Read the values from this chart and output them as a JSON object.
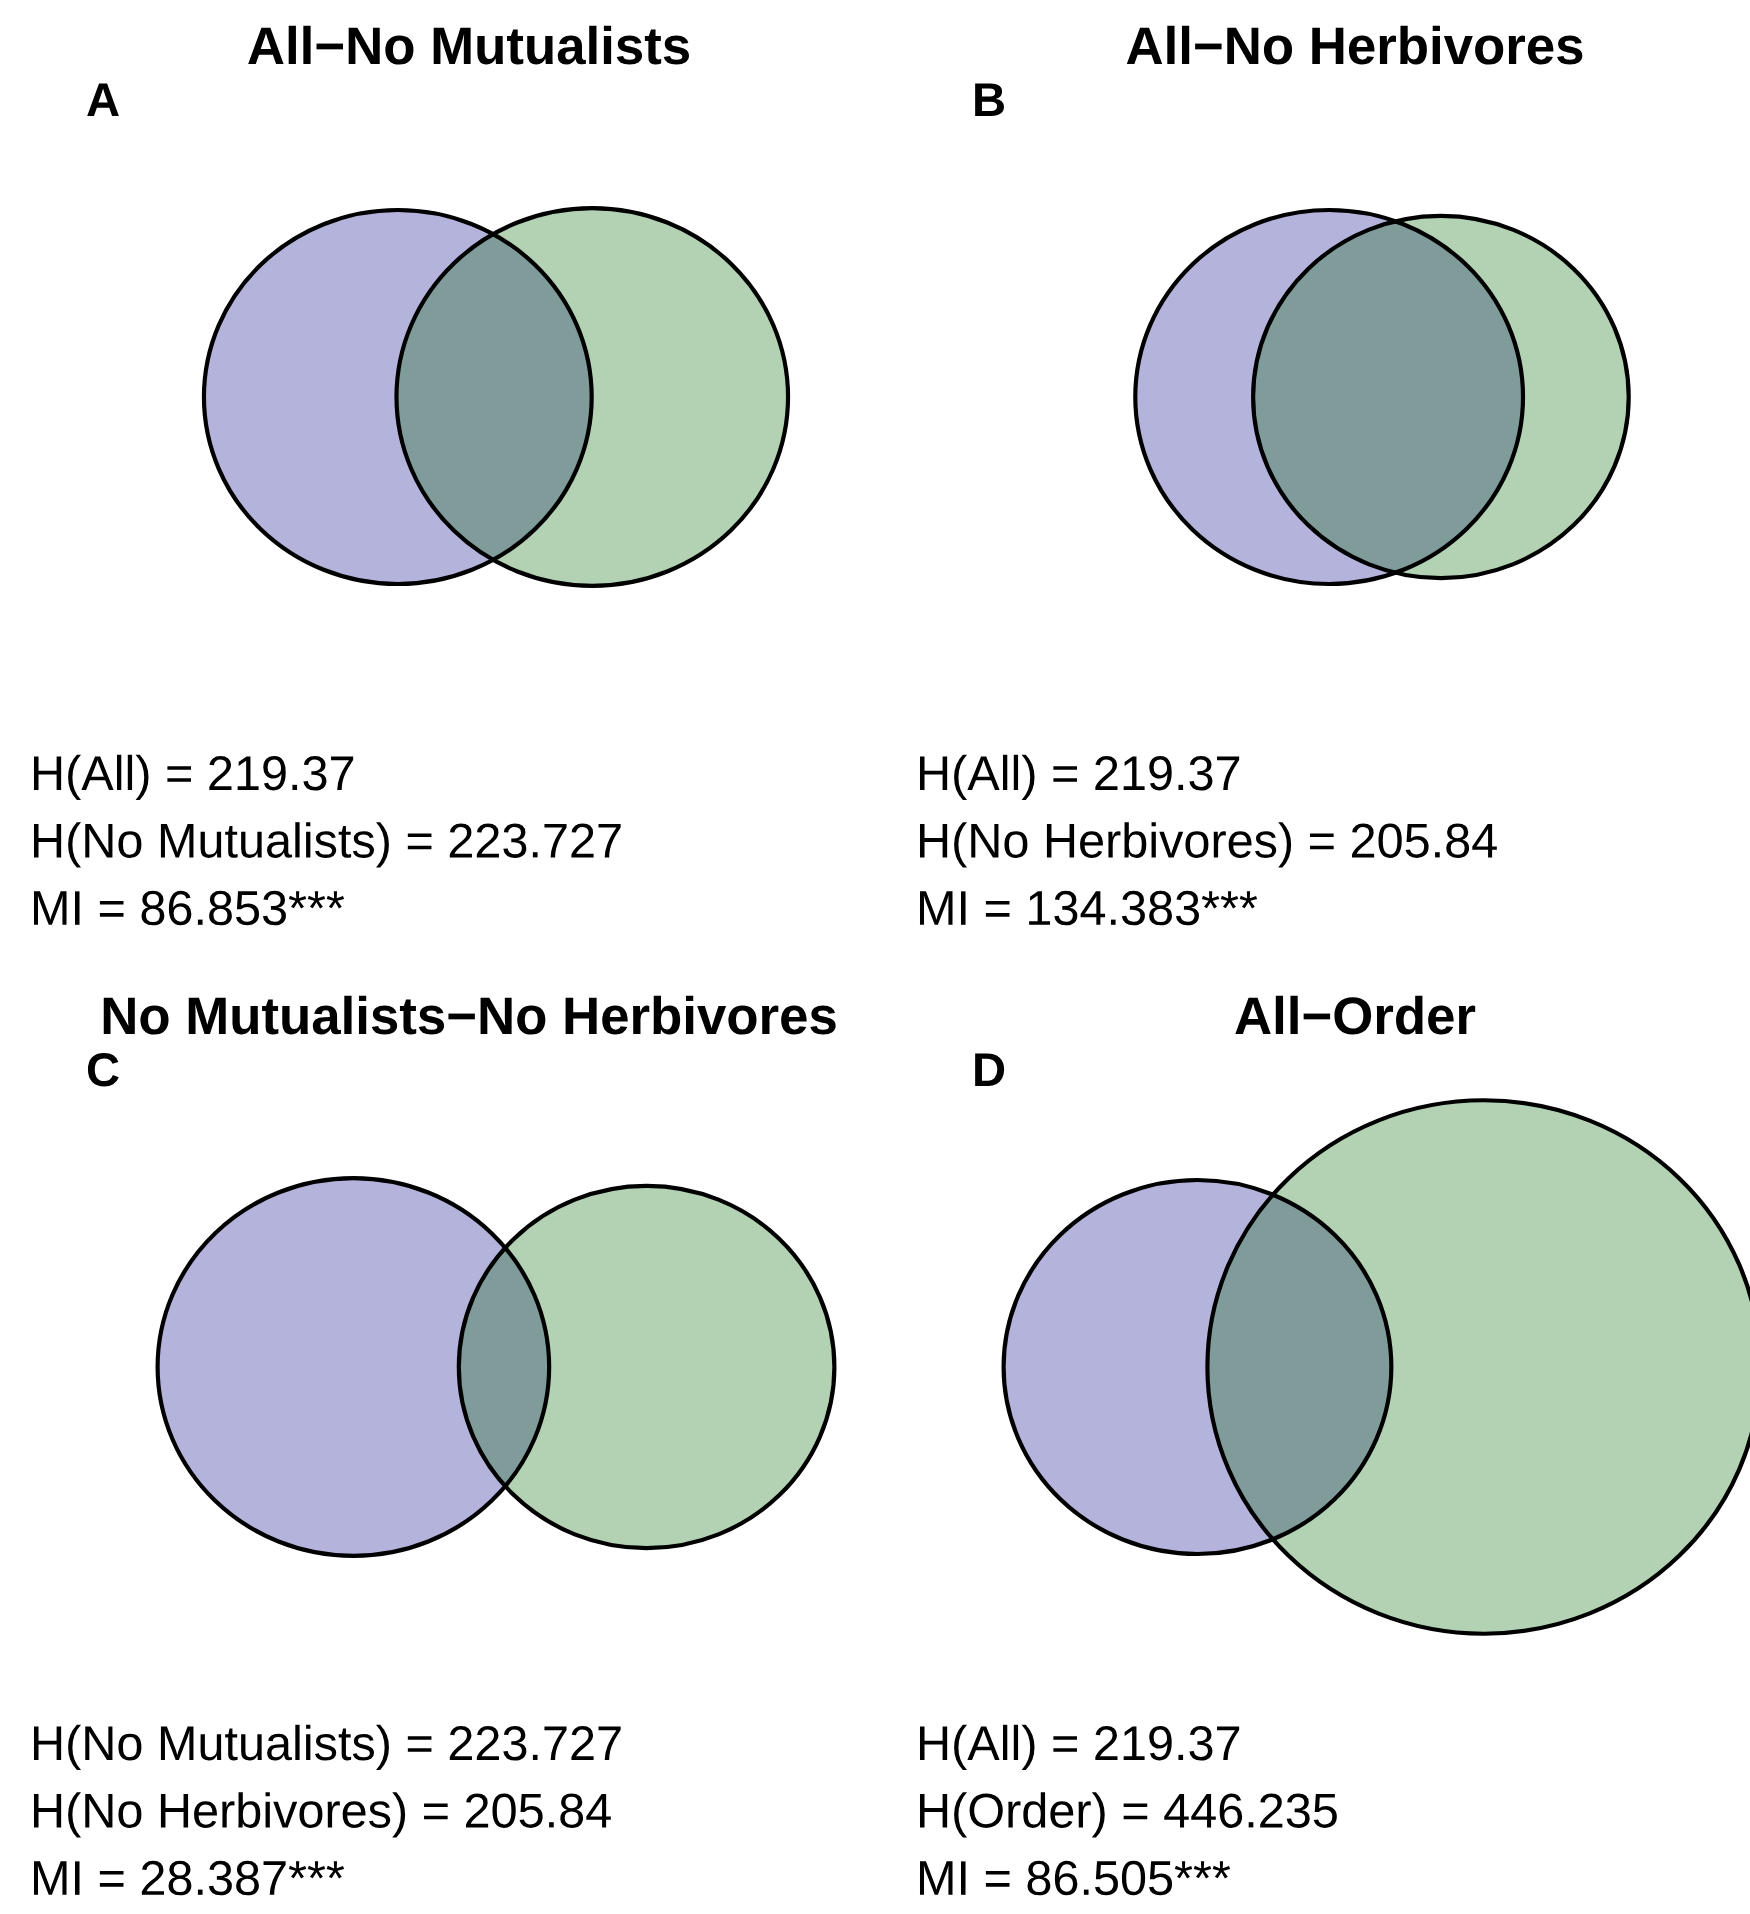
{
  "chart_data": [
    {
      "type": "other",
      "title": "All−No Mutualists",
      "subtitle": "A",
      "values": [
        219.37,
        223.727,
        86.853
      ],
      "value_labels": [
        "H(All) = 219.37",
        "H(No Mutualists) = 223.727",
        "MI = 86.853***"
      ],
      "colors": [
        "#b3b3dc",
        "#b2d2b3",
        "#7f9b9a"
      ]
    },
    {
      "type": "other",
      "title": "All−No Herbivores",
      "subtitle": "B",
      "values": [
        219.37,
        205.84,
        134.383
      ],
      "value_labels": [
        "H(All) = 219.37",
        "H(No Herbivores) = 205.84",
        "MI = 134.383***"
      ],
      "colors": [
        "#b3b3dc",
        "#b2d2b3",
        "#7f9b9a"
      ]
    },
    {
      "type": "other",
      "title": "No Mutualists−No Herbivores",
      "subtitle": "C",
      "values": [
        223.727,
        205.84,
        28.387
      ],
      "value_labels": [
        "H(No Mutualists) = 223.727",
        "H(No Herbivores) = 205.84",
        "MI = 28.387***"
      ],
      "colors": [
        "#b3b3dc",
        "#b2d2b3",
        "#7f9b9a"
      ]
    },
    {
      "type": "other",
      "title": "All−Order",
      "subtitle": "D",
      "values": [
        219.37,
        446.235,
        86.505
      ],
      "value_labels": [
        "H(All) = 219.37",
        "H(Order) = 446.235",
        "MI = 86.505***"
      ],
      "colors": [
        "#b3b3dc",
        "#b2d2b3",
        "#7f9b9a"
      ]
    }
  ]
}
